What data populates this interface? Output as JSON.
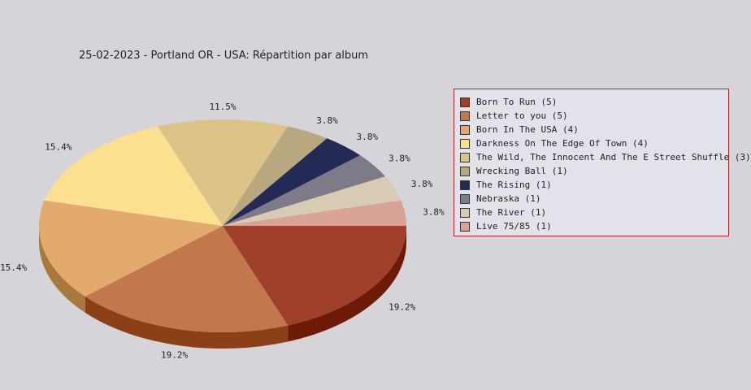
{
  "chart_data": {
    "type": "pie",
    "title": "25-02-2023 - Portland OR - USA:  Répartition par album",
    "slices": [
      {
        "label": "Born To Run (5)",
        "value": 5,
        "pct_label": "19.2%",
        "color": "#a0402a",
        "side": "#6e1a08"
      },
      {
        "label": "Letter to you (5)",
        "value": 5,
        "pct_label": "19.2%",
        "color": "#c2774c",
        "side": "#8c4018"
      },
      {
        "label": "Born In The USA (4)",
        "value": 4,
        "pct_label": "15.4%",
        "color": "#e2aa6c",
        "side": "#a8783c"
      },
      {
        "label": "Darkness On The Edge Of Town (4)",
        "value": 4,
        "pct_label": "15.4%",
        "color": "#fde08f",
        "side": "#c0a860"
      },
      {
        "label": "The Wild, The Innocent And The E Street Shuffle (3)",
        "value": 3,
        "pct_label": "11.5%",
        "color": "#dcc489",
        "side": "#a8905c"
      },
      {
        "label": "Wrecking Ball (1)",
        "value": 1,
        "pct_label": "3.8%",
        "color": "#b8a77f",
        "side": "#887858"
      },
      {
        "label": "The Rising (1)",
        "value": 1,
        "pct_label": "3.8%",
        "color": "#222a55",
        "side": "#101530"
      },
      {
        "label": "Nebraska (1)",
        "value": 1,
        "pct_label": "3.8%",
        "color": "#7d7b88",
        "side": "#55535e"
      },
      {
        "label": "The River (1)",
        "value": 1,
        "pct_label": "3.8%",
        "color": "#d7cbb3",
        "side": "#a89c84"
      },
      {
        "label": "Live 75/85 (1)",
        "value": 1,
        "pct_label": "3.8%",
        "color": "#d9a297",
        "side": "#a87468"
      }
    ],
    "legend_position": "right"
  }
}
